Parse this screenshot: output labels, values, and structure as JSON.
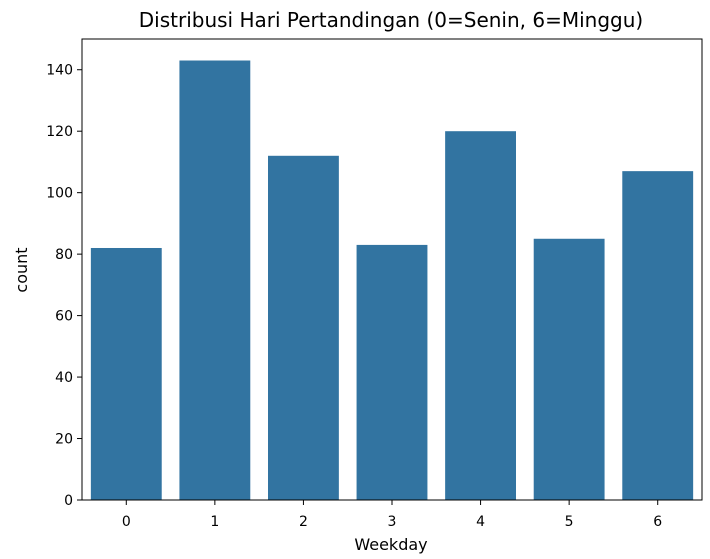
{
  "chart_data": {
    "type": "bar",
    "title": "Distribusi Hari Pertandingan (0=Senin, 6=Minggu)",
    "xlabel": "Weekday",
    "ylabel": "count",
    "categories": [
      "0",
      "1",
      "2",
      "3",
      "4",
      "5",
      "6"
    ],
    "values": [
      82,
      143,
      112,
      83,
      120,
      85,
      107
    ],
    "ylim": [
      0,
      150
    ],
    "yticks": [
      0,
      20,
      40,
      60,
      80,
      100,
      120,
      140
    ],
    "grid": false,
    "legend": "none",
    "bar_color": "#3274a1"
  }
}
